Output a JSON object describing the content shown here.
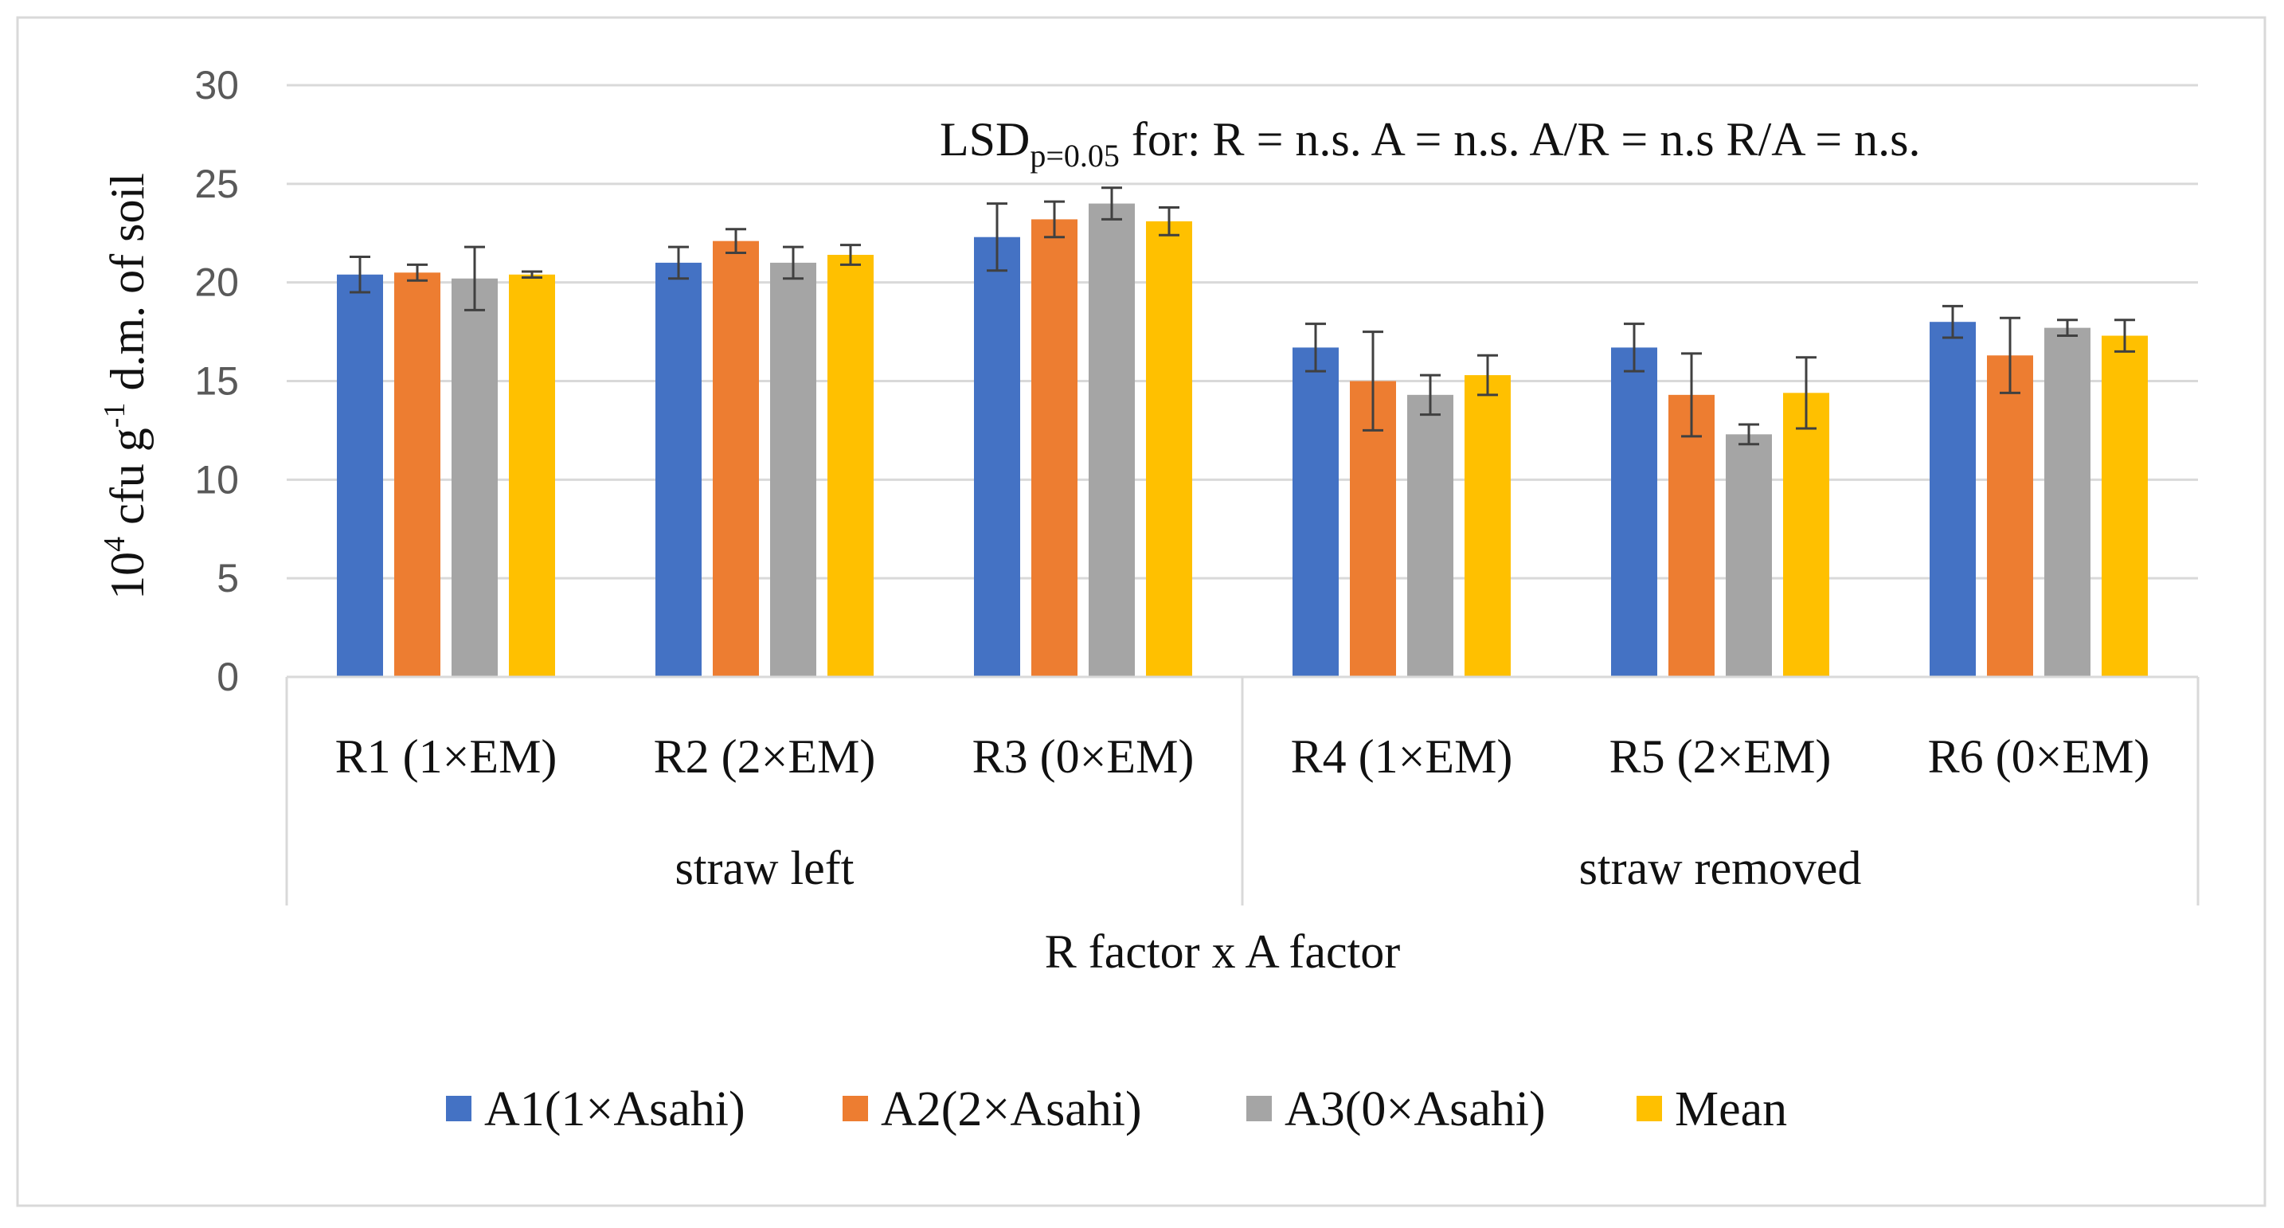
{
  "chart_data": {
    "type": "bar",
    "ylabel_base": "10",
    "ylabel_sup1": "4",
    "ylabel_mid": " cfu g",
    "ylabel_sup2": "-1",
    "ylabel_end": " d.m. of soil",
    "xlabel": "R factor x A factor",
    "ylim": [
      0,
      30
    ],
    "yticks": [
      0,
      5,
      10,
      15,
      20,
      25,
      30
    ],
    "grid": true,
    "legend_position": "bottom",
    "categories": [
      "R1 (1×EM)",
      "R2 (2×EM)",
      "R3 (0×EM)",
      "R4 (1×EM)",
      "R5 (2×EM)",
      "R6 (0×EM)"
    ],
    "groups": [
      {
        "label": "straw left",
        "span": [
          0,
          2
        ]
      },
      {
        "label": "straw removed",
        "span": [
          3,
          5
        ]
      }
    ],
    "series": [
      {
        "name": "A1(1×Asahi)",
        "color": "#4472C4",
        "values": [
          20.4,
          21.0,
          22.3,
          16.7,
          16.7,
          18.0
        ],
        "errors": [
          0.9,
          0.8,
          1.7,
          1.2,
          1.2,
          0.8
        ]
      },
      {
        "name": "A2(2×Asahi)",
        "color": "#ED7D31",
        "values": [
          20.5,
          22.1,
          23.2,
          15.0,
          14.3,
          16.3
        ],
        "errors": [
          0.4,
          0.6,
          0.9,
          2.5,
          2.1,
          1.9
        ]
      },
      {
        "name": "A3(0×Asahi)",
        "color": "#A5A5A5",
        "values": [
          20.2,
          21.0,
          24.0,
          14.3,
          12.3,
          17.7
        ],
        "errors": [
          1.6,
          0.8,
          0.8,
          1.0,
          0.5,
          0.4
        ]
      },
      {
        "name": "Mean",
        "color": "#FFC000",
        "values": [
          20.4,
          21.4,
          23.1,
          15.3,
          14.4,
          17.3
        ],
        "errors": [
          0.15,
          0.5,
          0.7,
          1.0,
          1.8,
          0.8
        ]
      }
    ],
    "annotation": {
      "lsd_main": "LSD",
      "lsd_sub": "p=0.05",
      "lsd_rest": " for: R = n.s.   A = n.s.  A/R = n.s  R/A = n.s."
    }
  }
}
